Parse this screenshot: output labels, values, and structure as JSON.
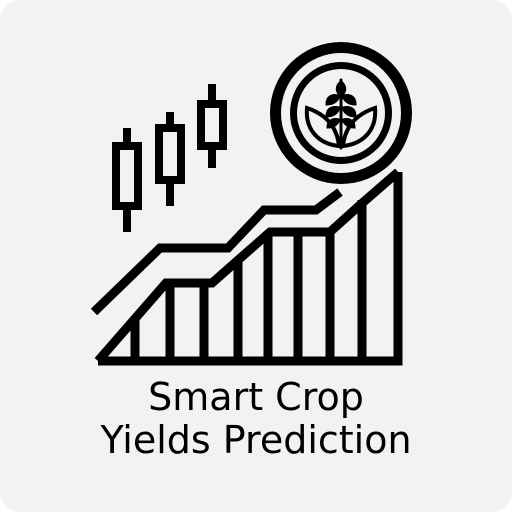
{
  "logo": {
    "title_line_1": "Smart Crop",
    "title_line_2": "Yields Prediction",
    "icon": "crop-yield-growth-chart-with-leaf-coin",
    "colors": {
      "background": "#f2f2f2",
      "ink": "#000000"
    }
  }
}
